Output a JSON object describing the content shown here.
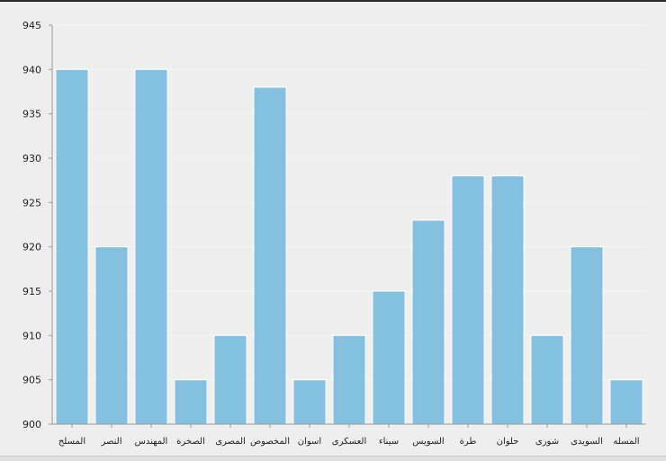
{
  "chart_data": {
    "type": "bar",
    "categories": [
      "المسلح",
      "النصر",
      "المهندس",
      "الصخرة",
      "المصرى",
      "المخصوص",
      "اسوان",
      "العسكرى",
      "سيناء",
      "السويس",
      "طرة",
      "حلوان",
      "شورى",
      "السويدى",
      "المسله"
    ],
    "values": [
      940,
      920,
      940,
      905,
      910,
      938,
      905,
      910,
      915,
      923,
      928,
      928,
      910,
      920,
      905
    ],
    "ylim": [
      900,
      945
    ],
    "yticks": [
      900,
      905,
      910,
      915,
      920,
      925,
      930,
      935,
      940,
      945
    ],
    "grid": true,
    "title": "",
    "xlabel": "",
    "ylabel": ""
  },
  "colors": {
    "bar_fill": "#84c1e0",
    "bar_stroke": "#ffffff",
    "background": "#eeeeee",
    "grid": "#f5f5f5",
    "axis": "#9a9a9a"
  }
}
